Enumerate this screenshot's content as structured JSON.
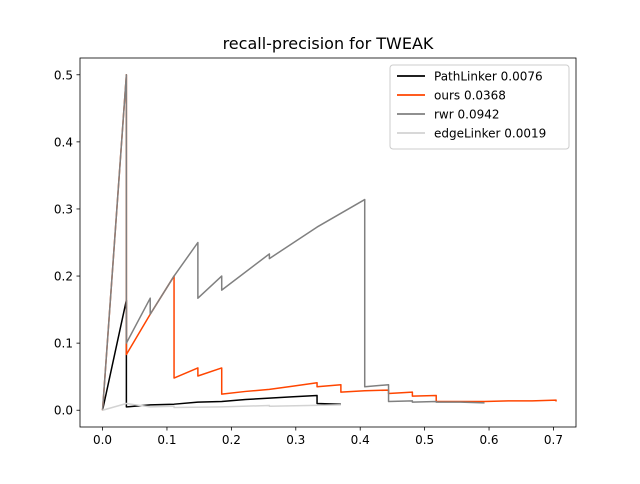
{
  "chart_data": {
    "type": "line",
    "title": "recall-precision for TWEAK",
    "xlabel": "",
    "ylabel": "",
    "xlim": [
      -0.035,
      0.735
    ],
    "ylim": [
      -0.025,
      0.525
    ],
    "xticks": [
      0.0,
      0.1,
      0.2,
      0.3,
      0.4,
      0.5,
      0.6,
      0.7
    ],
    "xtick_labels": [
      "0.0",
      "0.1",
      "0.2",
      "0.3",
      "0.4",
      "0.5",
      "0.6",
      "0.7"
    ],
    "yticks": [
      0.0,
      0.1,
      0.2,
      0.3,
      0.4,
      0.5
    ],
    "ytick_labels": [
      "0.0",
      "0.1",
      "0.2",
      "0.3",
      "0.4",
      "0.5"
    ],
    "grid": false,
    "legend_position": "top-right",
    "series": [
      {
        "name": "PathLinker 0.0076",
        "color": "#000000",
        "points": [
          [
            0.0,
            0.0
          ],
          [
            0.037,
            0.164
          ],
          [
            0.037,
            0.005
          ],
          [
            0.074,
            0.008
          ],
          [
            0.111,
            0.009
          ],
          [
            0.148,
            0.012
          ],
          [
            0.185,
            0.013
          ],
          [
            0.222,
            0.016
          ],
          [
            0.259,
            0.018
          ],
          [
            0.296,
            0.02
          ],
          [
            0.333,
            0.022
          ],
          [
            0.333,
            0.01
          ],
          [
            0.37,
            0.009
          ]
        ]
      },
      {
        "name": "ours 0.0368",
        "color": "#ff4500",
        "points": [
          [
            0.0,
            0.0
          ],
          [
            0.037,
            0.5
          ],
          [
            0.037,
            0.083
          ],
          [
            0.074,
            0.143
          ],
          [
            0.111,
            0.2
          ],
          [
            0.111,
            0.048
          ],
          [
            0.148,
            0.063
          ],
          [
            0.148,
            0.051
          ],
          [
            0.185,
            0.063
          ],
          [
            0.185,
            0.024
          ],
          [
            0.222,
            0.028
          ],
          [
            0.259,
            0.031
          ],
          [
            0.296,
            0.036
          ],
          [
            0.333,
            0.041
          ],
          [
            0.333,
            0.035
          ],
          [
            0.37,
            0.038
          ],
          [
            0.37,
            0.027
          ],
          [
            0.407,
            0.029
          ],
          [
            0.444,
            0.03
          ],
          [
            0.444,
            0.025
          ],
          [
            0.481,
            0.027
          ],
          [
            0.481,
            0.021
          ],
          [
            0.518,
            0.022
          ],
          [
            0.518,
            0.013
          ],
          [
            0.556,
            0.013
          ],
          [
            0.593,
            0.013
          ],
          [
            0.63,
            0.014
          ],
          [
            0.667,
            0.014
          ],
          [
            0.704,
            0.015
          ],
          [
            0.704,
            0.013
          ]
        ]
      },
      {
        "name": "rwr 0.0942",
        "color": "#808080",
        "points": [
          [
            0.0,
            0.0
          ],
          [
            0.037,
            0.5
          ],
          [
            0.037,
            0.1
          ],
          [
            0.074,
            0.167
          ],
          [
            0.074,
            0.143
          ],
          [
            0.111,
            0.2
          ],
          [
            0.148,
            0.25
          ],
          [
            0.148,
            0.167
          ],
          [
            0.185,
            0.2
          ],
          [
            0.185,
            0.179
          ],
          [
            0.259,
            0.233
          ],
          [
            0.259,
            0.226
          ],
          [
            0.333,
            0.273
          ],
          [
            0.407,
            0.314
          ],
          [
            0.407,
            0.035
          ],
          [
            0.444,
            0.038
          ],
          [
            0.444,
            0.013
          ],
          [
            0.481,
            0.014
          ],
          [
            0.481,
            0.012
          ],
          [
            0.518,
            0.013
          ],
          [
            0.518,
            0.012
          ],
          [
            0.556,
            0.012
          ],
          [
            0.593,
            0.011
          ]
        ]
      },
      {
        "name": "edgeLinker 0.0019",
        "color": "#d3d3d3",
        "points": [
          [
            0.0,
            0.0
          ],
          [
            0.037,
            0.01
          ],
          [
            0.074,
            0.005
          ],
          [
            0.111,
            0.006
          ],
          [
            0.111,
            0.004
          ],
          [
            0.185,
            0.005
          ],
          [
            0.259,
            0.007
          ],
          [
            0.259,
            0.006
          ],
          [
            0.37,
            0.008
          ]
        ]
      }
    ]
  }
}
